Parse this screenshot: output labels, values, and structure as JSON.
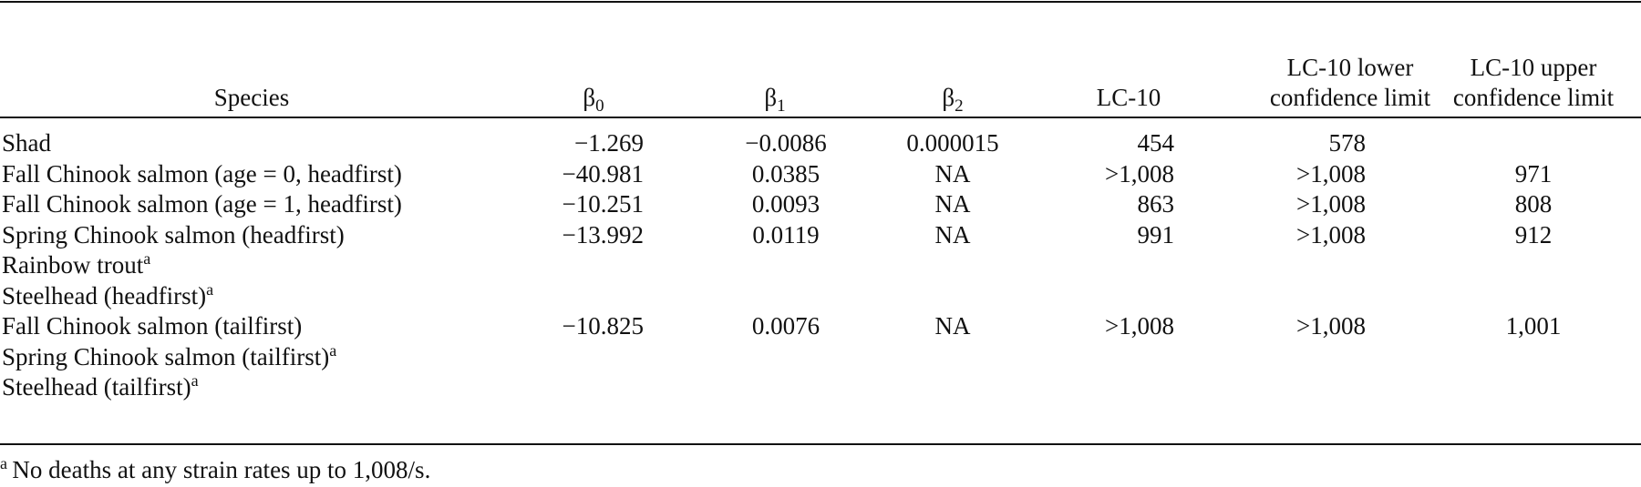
{
  "table": {
    "columns": [
      {
        "label": "Species"
      },
      {
        "label": "β",
        "subscript": "0"
      },
      {
        "label": "β",
        "subscript": "1"
      },
      {
        "label": "β",
        "subscript": "2"
      },
      {
        "label": "LC-10"
      },
      {
        "label": "LC-10 lower confidence limit"
      },
      {
        "label": "LC-10 upper confidence limit"
      }
    ],
    "rows": [
      {
        "species": "Shad",
        "cells": [
          "−1.269",
          "−0.0086",
          "0.000015",
          "454",
          "578",
          null
        ]
      },
      {
        "species": "Fall Chinook salmon (age = 0, headfirst)",
        "cells": [
          "−40.981",
          "0.0385",
          "NA",
          ">1,008",
          ">1,008",
          "971"
        ]
      },
      {
        "species": "Fall Chinook salmon (age = 1, headfirst)",
        "cells": [
          "−10.251",
          "0.0093",
          "NA",
          "863",
          ">1,008",
          "808"
        ]
      },
      {
        "species": "Spring Chinook salmon (headfirst)",
        "cells": [
          "−13.992",
          "0.0119",
          "NA",
          "991",
          ">1,008",
          "912"
        ]
      },
      {
        "species": "Rainbow trout",
        "note": "a",
        "cells": [
          null,
          null,
          null,
          null,
          null,
          null
        ]
      },
      {
        "species": "Steelhead (headfirst)",
        "note": "a",
        "cells": [
          null,
          null,
          null,
          null,
          null,
          null
        ]
      },
      {
        "species": "Fall Chinook salmon (tailfirst)",
        "cells": [
          "−10.825",
          "0.0076",
          "NA",
          ">1,008",
          ">1,008",
          "1,001"
        ]
      },
      {
        "species": "Spring Chinook salmon (tailfirst)",
        "note": "a",
        "cells": [
          null,
          null,
          null,
          null,
          null,
          null
        ]
      },
      {
        "species": "Steelhead (tailfirst)",
        "note": "a",
        "cells": [
          null,
          null,
          null,
          null,
          null,
          null
        ]
      }
    ],
    "footnote": {
      "mark": "a",
      "text": "No deaths at any strain rates up to 1,008/s."
    }
  }
}
